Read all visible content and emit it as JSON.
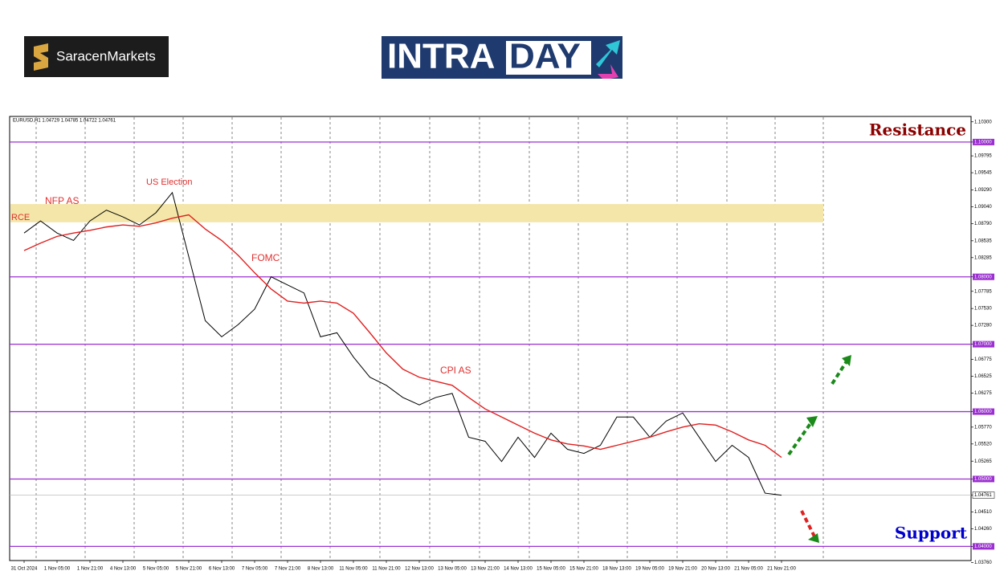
{
  "logos": {
    "broker": "SaracenMarkets",
    "brand": [
      "INTRA",
      "DAY"
    ]
  },
  "chart_data": {
    "type": "line",
    "symbol_info": "EURUSD,H1  1.04729 1.04785 1.04722 1.04761",
    "categories": [
      "31 Oct 2024",
      null,
      "1 Nov 05:00",
      null,
      "1 Nov 21:00",
      null,
      "4 Nov 13:00",
      null,
      "5 Nov 05:00",
      null,
      "5 Nov 21:00",
      null,
      "6 Nov 13:00",
      null,
      "7 Nov 05:00",
      null,
      "7 Nov 21:00",
      null,
      "8 Nov 13:00",
      null,
      "11 Nov 05:00",
      null,
      "11 Nov 21:00",
      null,
      "12 Nov 13:00",
      null,
      "13 Nov 05:00",
      null,
      "13 Nov 21:00",
      null,
      "14 Nov 13:00",
      null,
      "15 Nov 05:00",
      null,
      "15 Nov 21:00",
      null,
      "18 Nov 13:00",
      null,
      "19 Nov 05:00",
      null,
      "19 Nov 21:00",
      null,
      "20 Nov 13:00",
      null,
      "21 Nov 05:00",
      null,
      "21 Nov 21:00"
    ],
    "series": [
      {
        "name": "EURUSD",
        "color": "#000000",
        "values": [
          1.0865,
          1.0883,
          1.0865,
          1.0854,
          1.0883,
          1.0899,
          1.0889,
          1.0877,
          1.0895,
          1.0925,
          1.083,
          1.0735,
          1.0711,
          1.0729,
          1.0752,
          1.08,
          1.0788,
          1.0776,
          1.0711,
          1.0717,
          1.0681,
          1.0651,
          1.0639,
          1.0621,
          1.061,
          1.0621,
          1.0627,
          1.0562,
          1.0556,
          1.0526,
          1.0562,
          1.0532,
          1.0568,
          1.0544,
          1.0538,
          1.055,
          1.0592,
          1.0592,
          1.0562,
          1.0586,
          1.0598,
          1.0562,
          1.0526,
          1.055,
          1.0532,
          1.0479,
          1.0476
        ]
      },
      {
        "name": "MA",
        "color": "#e02020",
        "values": [
          1.0839,
          1.085,
          1.086,
          1.0865,
          1.0869,
          1.0874,
          1.0877,
          1.0875,
          1.088,
          1.0887,
          1.0892,
          1.0871,
          1.0854,
          1.0832,
          1.0806,
          1.0782,
          1.0764,
          1.0761,
          1.0764,
          1.0761,
          1.0746,
          1.0717,
          1.0687,
          1.0663,
          1.0651,
          1.0645,
          1.0639,
          1.0621,
          1.0604,
          1.0592,
          1.058,
          1.0568,
          1.0558,
          1.0552,
          1.0549,
          1.0544,
          1.055,
          1.0556,
          1.0562,
          1.057,
          1.0577,
          1.0582,
          1.058,
          1.057,
          1.0558,
          1.055,
          1.0532
        ]
      }
    ],
    "ylim": [
      1.0379,
      1.1038
    ],
    "yticks": [
      {
        "value": 1.103,
        "label": "1.10300"
      },
      {
        "value": 1.1,
        "label": "1.10000"
      },
      {
        "value": 1.09795,
        "label": "1.09795"
      },
      {
        "value": 1.09545,
        "label": "1.09545"
      },
      {
        "value": 1.0929,
        "label": "1.09290"
      },
      {
        "value": 1.0904,
        "label": "1.09040"
      },
      {
        "value": 1.0879,
        "label": "1.08790"
      },
      {
        "value": 1.08535,
        "label": "1.08535"
      },
      {
        "value": 1.08285,
        "label": "1.08285"
      },
      {
        "value": 1.08,
        "label": "1.08000"
      },
      {
        "value": 1.07785,
        "label": "1.07785"
      },
      {
        "value": 1.0753,
        "label": "1.07530"
      },
      {
        "value": 1.0728,
        "label": "1.07280"
      },
      {
        "value": 1.07,
        "label": "1.07000"
      },
      {
        "value": 1.06775,
        "label": "1.06775"
      },
      {
        "value": 1.06525,
        "label": "1.06525"
      },
      {
        "value": 1.06275,
        "label": "1.06275"
      },
      {
        "value": 1.06,
        "label": "1.06000"
      },
      {
        "value": 1.0577,
        "label": "1.05770"
      },
      {
        "value": 1.0552,
        "label": "1.05520"
      },
      {
        "value": 1.05265,
        "label": "1.05265"
      },
      {
        "value": 1.05,
        "label": "1.05000"
      },
      {
        "value": 1.04761,
        "label": "1.04761"
      },
      {
        "value": 1.0451,
        "label": "1.04510"
      },
      {
        "value": 1.0426,
        "label": "1.04260"
      },
      {
        "value": 1.04,
        "label": "1.04000"
      },
      {
        "value": 1.0376,
        "label": "1.03760"
      }
    ],
    "levels": [
      1.1,
      1.08,
      1.07,
      1.06,
      1.05,
      1.04
    ],
    "level_color": "#9b30d0",
    "zone": [
      1.0881,
      1.0908
    ],
    "zone_color": "#f3e6a8",
    "current_price": 1.04761,
    "annotations": [
      {
        "text": "Resistance",
        "color": "#8b0000"
      },
      {
        "text": "Support",
        "color": "#0000cc"
      },
      {
        "text": "RCE",
        "color": "#e03030"
      },
      {
        "text": "NFP AS",
        "color": "#e03030"
      },
      {
        "text": "US Election",
        "color": "#e03030"
      },
      {
        "text": "FOMC",
        "color": "#e03030"
      },
      {
        "text": "CPI AS",
        "color": "#e03030"
      }
    ]
  }
}
